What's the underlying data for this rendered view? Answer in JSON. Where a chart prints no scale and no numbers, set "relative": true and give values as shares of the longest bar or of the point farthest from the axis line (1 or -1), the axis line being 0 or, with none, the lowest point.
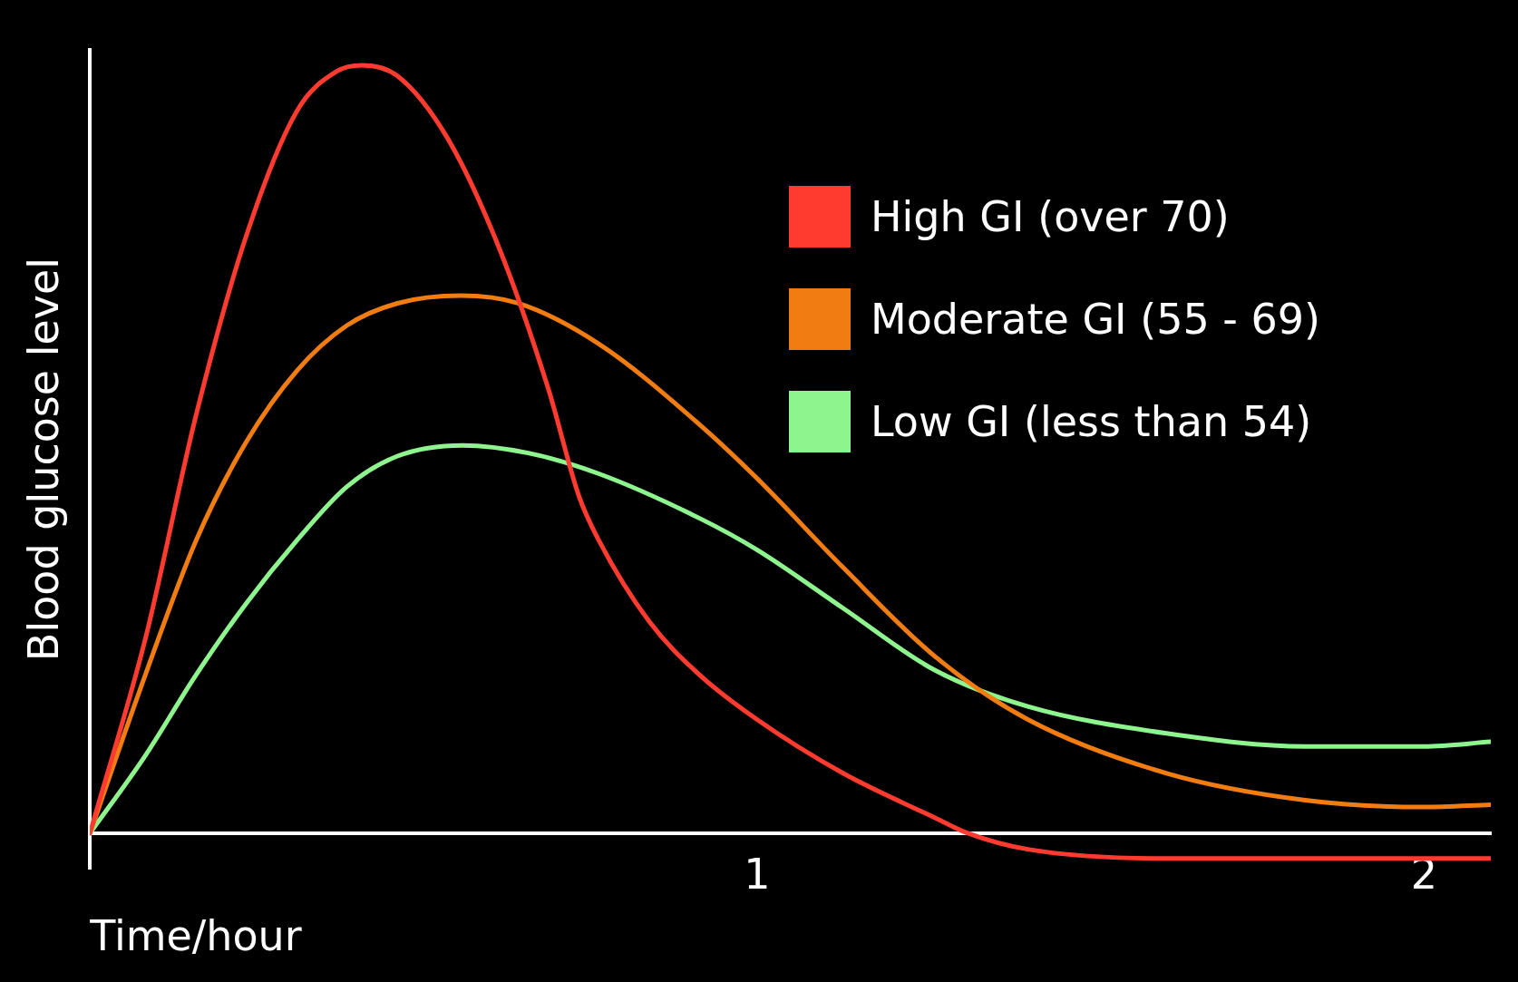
{
  "chart_data": {
    "type": "line",
    "relative": true,
    "xlabel": "Time/hour",
    "ylabel": "Blood glucose level",
    "xlim": [
      0,
      2.1
    ],
    "xticks": [
      1,
      2
    ],
    "grid": false,
    "legend": "top right",
    "marker": "none",
    "line_style": "solid",
    "series": [
      {
        "name": "High GI (over 70)",
        "color": "#ff3b30",
        "x": [
          0,
          0.083,
          0.159,
          0.234,
          0.31,
          0.37,
          0.408,
          0.461,
          0.536,
          0.612,
          0.687,
          0.733,
          0.763,
          0.838,
          0.914,
          1,
          1.129,
          1.267,
          1.316,
          1.406,
          1.614,
          2.1
        ],
        "values": [
          0,
          0.253,
          0.544,
          0.777,
          0.94,
          0.992,
          1,
          0.986,
          0.905,
          0.765,
          0.579,
          0.439,
          0.381,
          0.276,
          0.206,
          0.148,
          0.078,
          0.02,
          0,
          -0.021,
          -0.033,
          -0.033
        ]
      },
      {
        "name": "Moderate GI (55 - 69)",
        "color": "#f07c12",
        "x": [
          0,
          0.083,
          0.159,
          0.234,
          0.31,
          0.385,
          0.461,
          0.556,
          0.642,
          0.763,
          0.914,
          1,
          1.129,
          1.267,
          1.406,
          1.614,
          1.822,
          2,
          2.1
        ],
        "values": [
          0,
          0.206,
          0.381,
          0.509,
          0.602,
          0.661,
          0.69,
          0.7,
          0.69,
          0.637,
          0.532,
          0.462,
          0.346,
          0.23,
          0.148,
          0.078,
          0.043,
          0.034,
          0.037
        ]
      },
      {
        "name": "Low GI (less than 54)",
        "color": "#8ef58e",
        "x": [
          0,
          0.083,
          0.159,
          0.234,
          0.31,
          0.385,
          0.461,
          0.559,
          0.657,
          0.763,
          0.914,
          1,
          1.129,
          1.267,
          1.406,
          1.614,
          1.822,
          2,
          2.1
        ],
        "values": [
          0,
          0.101,
          0.206,
          0.299,
          0.381,
          0.451,
          0.491,
          0.505,
          0.495,
          0.468,
          0.41,
          0.369,
          0.293,
          0.212,
          0.165,
          0.13,
          0.113,
          0.113,
          0.119
        ]
      }
    ]
  }
}
